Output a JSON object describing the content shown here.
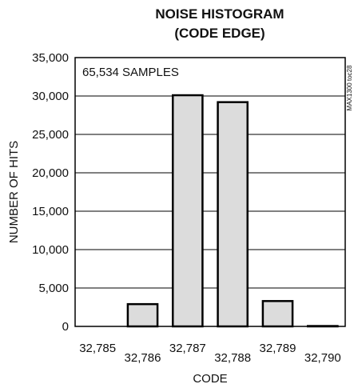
{
  "chart_data": {
    "type": "bar",
    "title": "NOISE HISTOGRAM",
    "subtitle": "(CODE EDGE)",
    "xlabel": "CODE",
    "ylabel": "NUMBER OF HITS",
    "categories": [
      "32,785",
      "32,786",
      "32,787",
      "32,788",
      "32,789",
      "32,790"
    ],
    "values": [
      0,
      2900,
      30100,
      29200,
      3300,
      50
    ],
    "ylim": [
      0,
      35000
    ],
    "yticks": [
      0,
      5000,
      10000,
      15000,
      20000,
      25000,
      30000,
      35000
    ],
    "ytick_labels": [
      "0",
      "5,000",
      "10,000",
      "15,000",
      "20,000",
      "25,000",
      "30,000",
      "35,000"
    ],
    "grid": true,
    "annotation": "65,534 SAMPLES",
    "side_reference": "MAX1300 toc28",
    "bar_fill": "#dcdcdc",
    "bar_stroke": "#000000"
  }
}
